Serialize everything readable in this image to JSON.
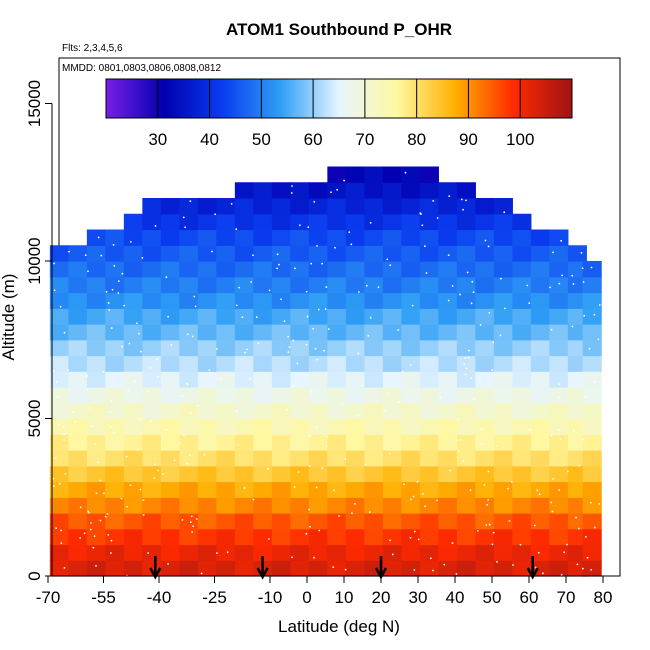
{
  "chart_data": {
    "type": "heatmap",
    "title": "ATOM1 Southbound P_OHR",
    "subtitle_lines": [
      "Flts: 2,3,4,5,6",
      "MMDD: 0801,0803,0806,0808,0812"
    ],
    "xlabel": "Latitude (deg N)",
    "ylabel": "Altitude (m)",
    "xlim": [
      -70,
      80
    ],
    "ylim": [
      0,
      18000
    ],
    "x_ticks": [
      -70,
      -55,
      -40,
      -25,
      -10,
      0,
      10,
      20,
      30,
      40,
      50,
      60,
      70,
      80
    ],
    "y_ticks": [
      0,
      5000,
      10000,
      15000
    ],
    "colorbar": {
      "range": [
        20,
        110
      ],
      "ticks": [
        30,
        40,
        50,
        60,
        70,
        80,
        90,
        100
      ],
      "stops": [
        "#7a1ee6",
        "#0000b0",
        "#0a3cf0",
        "#2f9ff5",
        "#e6f5ff",
        "#fff8a0",
        "#ffb000",
        "#ff2a00",
        "#9e1414"
      ]
    },
    "profile": {
      "alt_step": 500,
      "values": [
        103,
        101,
        98,
        95,
        91,
        88,
        84,
        80,
        77,
        74,
        71,
        68,
        65,
        62,
        60,
        57,
        55,
        52,
        50,
        48,
        46,
        44,
        41,
        38,
        35,
        32
      ]
    },
    "envelope": {
      "lat": [
        -67,
        -62,
        -57,
        -52,
        -47,
        -42,
        -37,
        -32,
        -27,
        -22,
        -17,
        -12,
        -7,
        -2,
        3,
        8,
        13,
        18,
        23,
        28,
        33,
        38,
        43,
        48,
        53,
        58,
        63,
        68,
        73,
        77
      ],
      "top_alt": [
        10500,
        10500,
        11000,
        11000,
        11500,
        12000,
        12000,
        12000,
        12000,
        12000,
        12500,
        12500,
        12500,
        12500,
        12500,
        13000,
        13000,
        13000,
        13000,
        13000,
        13000,
        12500,
        12500,
        12000,
        12000,
        11500,
        11000,
        11000,
        10500,
        10000
      ]
    },
    "arrows_lat": [
      -41,
      -12,
      20,
      61
    ]
  }
}
